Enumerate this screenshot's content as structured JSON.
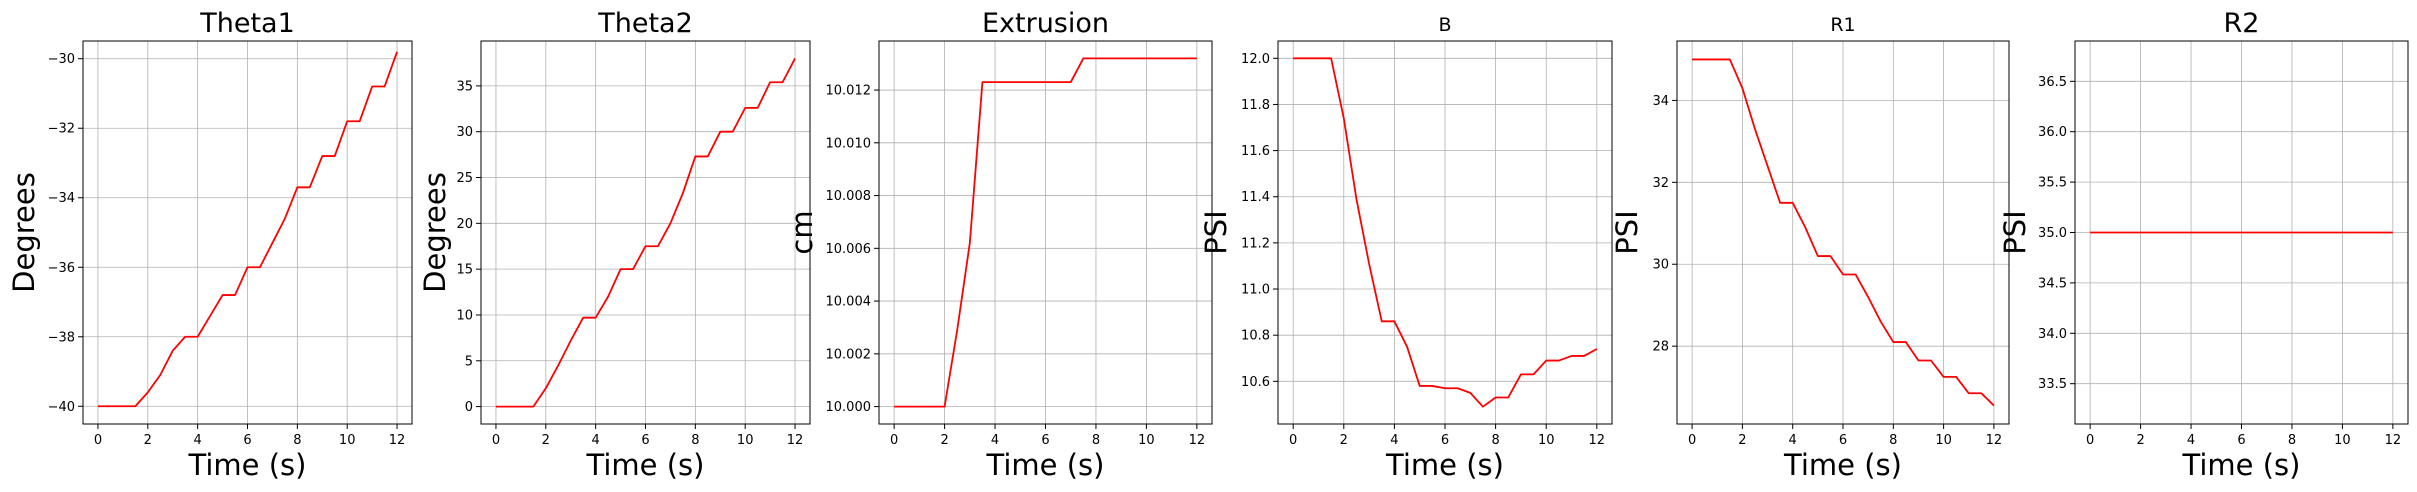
{
  "chart_data": [
    {
      "type": "line",
      "title": "Theta1",
      "title_size": "large",
      "xlabel": "Time (s)",
      "ylabel": "Degrees",
      "xlim": [
        -0.6,
        12.6
      ],
      "ylim": [
        -40.51,
        -29.49
      ],
      "xticks": [
        0,
        2,
        4,
        6,
        8,
        10,
        12
      ],
      "xtick_labels": [
        "0",
        "2",
        "4",
        "6",
        "8",
        "10",
        "12"
      ],
      "yticks": [
        -40,
        -38,
        -36,
        -34,
        -32,
        -30
      ],
      "ytick_labels": [
        "−40",
        "−38",
        "−36",
        "−34",
        "−32",
        "−30"
      ],
      "grid": true,
      "series": [
        {
          "color": "#ff0000",
          "x": [
            0,
            0.5,
            1,
            1.5,
            2,
            2.5,
            3,
            3.5,
            4,
            4.5,
            5,
            5.5,
            6,
            6.5,
            7,
            7.5,
            8,
            8.5,
            9,
            9.5,
            10,
            10.5,
            11,
            11.5,
            12
          ],
          "y": [
            -40,
            -40,
            -40,
            -40,
            -39.6,
            -39.1,
            -38.4,
            -38,
            -38,
            -37.4,
            -36.8,
            -36.8,
            -36,
            -36,
            -35.3,
            -34.6,
            -33.7,
            -33.7,
            -32.8,
            -32.8,
            -31.8,
            -31.8,
            -30.8,
            -30.8,
            -29.8
          ]
        }
      ]
    },
    {
      "type": "line",
      "title": "Theta2",
      "title_size": "large",
      "xlabel": "Time (s)",
      "ylabel": "Degrees",
      "xlim": [
        -0.6,
        12.6
      ],
      "ylim": [
        -1.9,
        39.9
      ],
      "xticks": [
        0,
        2,
        4,
        6,
        8,
        10,
        12
      ],
      "xtick_labels": [
        "0",
        "2",
        "4",
        "6",
        "8",
        "10",
        "12"
      ],
      "yticks": [
        0,
        5,
        10,
        15,
        20,
        25,
        30,
        35
      ],
      "ytick_labels": [
        "0",
        "5",
        "10",
        "15",
        "20",
        "25",
        "30",
        "35"
      ],
      "grid": true,
      "series": [
        {
          "color": "#ff0000",
          "x": [
            0,
            0.5,
            1,
            1.5,
            2,
            2.5,
            3,
            3.5,
            4,
            4.5,
            5,
            5.5,
            6,
            6.5,
            7,
            7.5,
            8,
            8.5,
            9,
            9.5,
            10,
            10.5,
            11,
            11.5,
            12
          ],
          "y": [
            0,
            0,
            0,
            0,
            2,
            4.5,
            7.2,
            9.7,
            9.7,
            12,
            15,
            15,
            17.5,
            17.5,
            20,
            23.3,
            27.3,
            27.3,
            30,
            30,
            32.6,
            32.6,
            35.4,
            35.4,
            38
          ]
        }
      ]
    },
    {
      "type": "line",
      "title": "Extrusion",
      "title_size": "large",
      "xlabel": "Time (s)",
      "ylabel": "cm",
      "xlim": [
        -0.6,
        12.6
      ],
      "ylim": [
        9.99934,
        10.01386
      ],
      "xticks": [
        0,
        2,
        4,
        6,
        8,
        10,
        12
      ],
      "xtick_labels": [
        "0",
        "2",
        "4",
        "6",
        "8",
        "10",
        "12"
      ],
      "yticks": [
        10.0,
        10.002,
        10.004,
        10.006,
        10.008,
        10.01,
        10.012
      ],
      "ytick_labels": [
        "10.000",
        "10.002",
        "10.004",
        "10.006",
        "10.008",
        "10.010",
        "10.012"
      ],
      "grid": true,
      "series": [
        {
          "color": "#ff0000",
          "x": [
            0,
            0.5,
            1,
            1.5,
            2,
            2.5,
            3,
            3.5,
            4,
            4.5,
            5,
            5.5,
            6,
            6.5,
            7,
            7.5,
            8,
            8.5,
            9,
            9.5,
            10,
            10.5,
            11,
            11.5,
            12
          ],
          "y": [
            10.0,
            10.0,
            10.0,
            10.0,
            10.0,
            10.0029,
            10.0062,
            10.0123,
            10.0123,
            10.0123,
            10.0123,
            10.0123,
            10.0123,
            10.0123,
            10.0123,
            10.0132,
            10.0132,
            10.0132,
            10.0132,
            10.0132,
            10.0132,
            10.0132,
            10.0132,
            10.0132,
            10.0132
          ]
        }
      ]
    },
    {
      "type": "line",
      "title": "B",
      "title_size": "small",
      "xlabel": "Time (s)",
      "ylabel": "PSI",
      "xlim": [
        -0.6,
        12.6
      ],
      "ylim": [
        10.415,
        12.075
      ],
      "xticks": [
        0,
        2,
        4,
        6,
        8,
        10,
        12
      ],
      "xtick_labels": [
        "0",
        "2",
        "4",
        "6",
        "8",
        "10",
        "12"
      ],
      "yticks": [
        10.6,
        10.8,
        11.0,
        11.2,
        11.4,
        11.6,
        11.8,
        12.0
      ],
      "ytick_labels": [
        "10.6",
        "10.8",
        "11.0",
        "11.2",
        "11.4",
        "11.6",
        "11.8",
        "12.0"
      ],
      "grid": true,
      "series": [
        {
          "color": "#ff0000",
          "x": [
            0,
            0.5,
            1,
            1.5,
            2,
            2.5,
            3,
            3.5,
            4,
            4.5,
            5,
            5.5,
            6,
            6.5,
            7,
            7.5,
            8,
            8.5,
            9,
            9.5,
            10,
            10.5,
            11,
            11.5,
            12
          ],
          "y": [
            12.0,
            12.0,
            12.0,
            12.0,
            11.74,
            11.39,
            11.11,
            10.86,
            10.86,
            10.75,
            10.58,
            10.58,
            10.57,
            10.57,
            10.55,
            10.49,
            10.53,
            10.53,
            10.63,
            10.63,
            10.69,
            10.69,
            10.71,
            10.71,
            10.74
          ]
        }
      ]
    },
    {
      "type": "line",
      "title": "R1",
      "title_size": "small",
      "xlabel": "Time (s)",
      "ylabel": "PSI",
      "xlim": [
        -0.6,
        12.6
      ],
      "ylim": [
        26.1,
        35.45
      ],
      "xticks": [
        0,
        2,
        4,
        6,
        8,
        10,
        12
      ],
      "xtick_labels": [
        "0",
        "2",
        "4",
        "6",
        "8",
        "10",
        "12"
      ],
      "yticks": [
        28,
        30,
        32,
        34
      ],
      "ytick_labels": [
        "28",
        "30",
        "32",
        "34"
      ],
      "grid": true,
      "series": [
        {
          "color": "#ff0000",
          "x": [
            0,
            0.5,
            1,
            1.5,
            2,
            2.5,
            3,
            3.5,
            4,
            4.5,
            5,
            5.5,
            6,
            6.5,
            7,
            7.5,
            8,
            8.5,
            9,
            9.5,
            10,
            10.5,
            11,
            11.5,
            12
          ],
          "y": [
            35,
            35,
            35,
            35,
            34.3,
            33.3,
            32.4,
            31.5,
            31.5,
            30.9,
            30.2,
            30.2,
            29.75,
            29.75,
            29.2,
            28.6,
            28.1,
            28.1,
            27.65,
            27.65,
            27.25,
            27.25,
            26.85,
            26.85,
            26.55
          ]
        }
      ]
    },
    {
      "type": "line",
      "title": "R2",
      "title_size": "large",
      "xlabel": "Time (s)",
      "ylabel": "PSI",
      "xlim": [
        -0.6,
        12.6
      ],
      "ylim": [
        33.1,
        36.9
      ],
      "xticks": [
        0,
        2,
        4,
        6,
        8,
        10,
        12
      ],
      "xtick_labels": [
        "0",
        "2",
        "4",
        "6",
        "8",
        "10",
        "12"
      ],
      "yticks": [
        33.5,
        34.0,
        34.5,
        35.0,
        35.5,
        36.0,
        36.5
      ],
      "ytick_labels": [
        "33.5",
        "34.0",
        "34.5",
        "35.0",
        "35.5",
        "36.0",
        "36.5"
      ],
      "grid": true,
      "series": [
        {
          "color": "#ff0000",
          "x": [
            0,
            12
          ],
          "y": [
            35,
            35
          ]
        }
      ]
    }
  ]
}
